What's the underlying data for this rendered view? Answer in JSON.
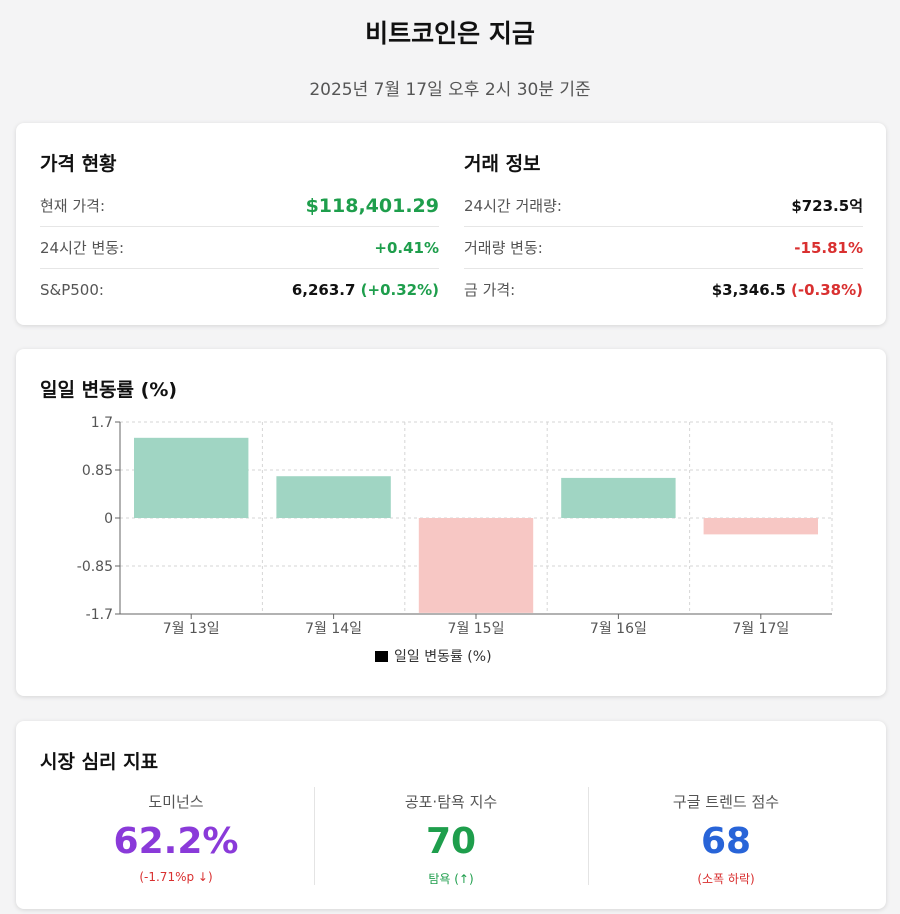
{
  "header": {
    "title": "비트코인은 지금",
    "subtitle": "2025년 7월 17일 오후 2시 30분 기준"
  },
  "price_section": {
    "title": "가격 현황",
    "rows": [
      {
        "label": "현재 가격:",
        "value": "$118,401.29"
      },
      {
        "label": "24시간 변동:",
        "value": "+0.41%"
      },
      {
        "label": "S&P500:",
        "value": "6,263.7",
        "change": "(+0.32%)"
      }
    ]
  },
  "trade_section": {
    "title": "거래 정보",
    "rows": [
      {
        "label": "24시간 거래량:",
        "value": "$723.5억"
      },
      {
        "label": "거래량 변동:",
        "value": "-15.81%"
      },
      {
        "label": "금 가격:",
        "value": "$3,346.5",
        "change": "(-0.38%)"
      }
    ]
  },
  "chart_section": {
    "title": "일일 변동률 (%)"
  },
  "chart_data": {
    "type": "bar",
    "categories": [
      "7월 13일",
      "7월 14일",
      "7월 15일",
      "7월 16일",
      "7월 17일"
    ],
    "values": [
      1.42,
      0.74,
      -1.68,
      0.71,
      -0.29
    ],
    "ylim": [
      -1.7,
      1.7
    ],
    "yticks": [
      "1.7",
      "0.85",
      "0",
      "-0.85",
      "-1.7"
    ],
    "legend": "일일 변동률 (%)",
    "legend_position": "bottom",
    "grid": true,
    "colors": {
      "positive": "#a0d5c3",
      "negative": "#f7c7c4",
      "legend_swatch": "#000000"
    }
  },
  "sentiment_section": {
    "title": "시장 심리 지표",
    "metrics": [
      {
        "label": "도미넌스",
        "value": "62.2%",
        "note": "(-1.71%p ↓)",
        "value_color": "#8a3ad9",
        "note_color": "#d93030"
      },
      {
        "label": "공포·탐욕 지수",
        "value": "70",
        "note": "탐욕 (↑)",
        "value_color": "#1e9e4c",
        "note_color": "#1e9e4c"
      },
      {
        "label": "구글 트렌드 점수",
        "value": "68",
        "note": "(소폭 하락)",
        "value_color": "#2864d8",
        "note_color": "#d93030"
      }
    ]
  }
}
